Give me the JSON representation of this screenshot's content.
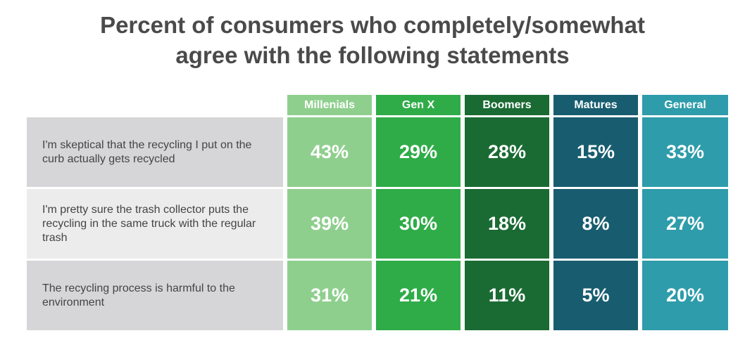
{
  "chart_data": {
    "type": "table",
    "title_lines": [
      "Percent of consumers who completely/somewhat",
      "agree with the following statements"
    ],
    "columns": [
      "Millenials",
      "Gen X",
      "Boomers",
      "Matures",
      "General"
    ],
    "rows": [
      {
        "statement": "I'm skeptical that the recycling I put on the curb actually gets recycled",
        "values": [
          "43%",
          "29%",
          "28%",
          "15%",
          "33%"
        ]
      },
      {
        "statement": "I'm pretty sure the trash collector puts the recycling in the same truck with the regular trash",
        "values": [
          "39%",
          "30%",
          "18%",
          "8%",
          "27%"
        ]
      },
      {
        "statement": "The recycling process is harmful to the environment",
        "values": [
          "31%",
          "21%",
          "11%",
          "5%",
          "20%"
        ]
      }
    ],
    "column_colors": [
      "#8fcf8e",
      "#2fac48",
      "#1a6b33",
      "#175d6f",
      "#2e9cab"
    ],
    "row_label_colors": [
      "#d6d6d8",
      "#ececec",
      "#d6d6d8"
    ]
  }
}
